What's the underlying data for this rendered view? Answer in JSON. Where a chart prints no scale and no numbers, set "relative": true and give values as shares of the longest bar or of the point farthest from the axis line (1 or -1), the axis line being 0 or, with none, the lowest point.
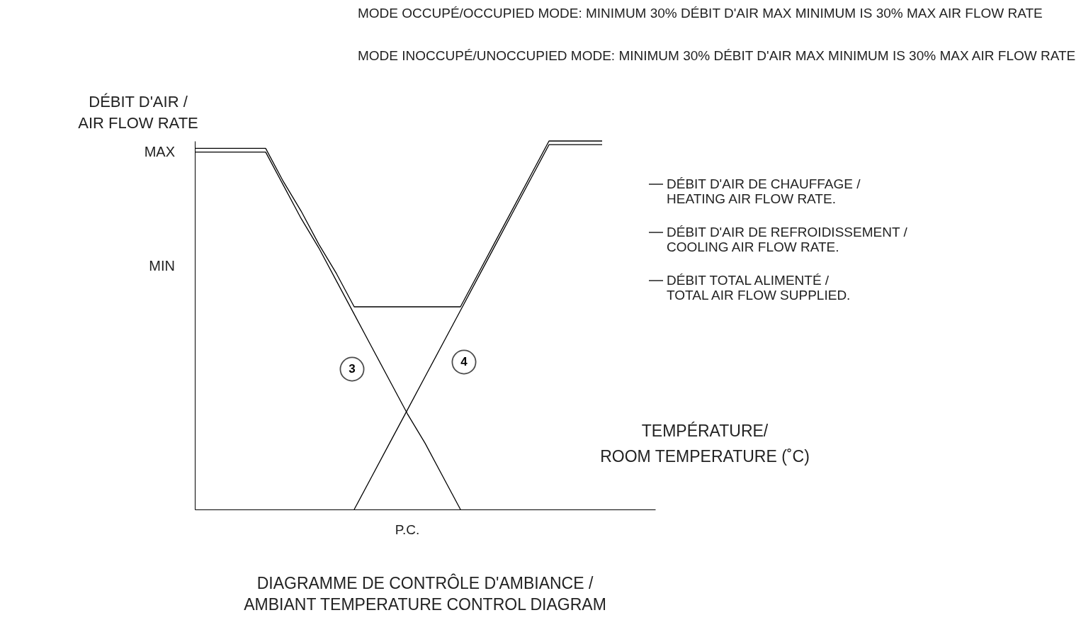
{
  "chart_data": {
    "type": "line",
    "relative": true,
    "title": "DIAGRAMME DE CONTRÔLE D'AMBIANCE / AMBIANT TEMPERATURE CONTROL DIAGRAM",
    "xlabel": "TEMPÉRATURE/ ROOM TEMPERATURE (˚C)",
    "ylabel": "DÉBIT D'AIR / AIR FLOW RATE",
    "categories": [
      null,
      null,
      null,
      null,
      null,
      null,
      null,
      null,
      null,
      null,
      null,
      null,
      null,
      null,
      null,
      null,
      null,
      null,
      null,
      null,
      null,
      null,
      null,
      null,
      null,
      null,
      null
    ],
    "series": [
      {
        "name": "DÉBIT D'AIR DE CHAUFFAGE / HEATING AIR FLOW RATE.",
        "color": "#000000",
        "values": [
          0.97,
          0.97,
          0.97,
          0.97,
          0.97,
          0.88,
          0.79,
          0.71,
          0.62,
          0.53,
          0.44,
          0.35,
          0.26,
          0.18,
          0.09,
          0,
          null,
          null,
          null,
          null,
          null,
          null,
          null,
          null,
          null,
          null,
          null
        ]
      },
      {
        "name": "DÉBIT D'AIR DE REFROIDISSEMENT / COOLING AIR FLOW RATE.",
        "color": "#000000",
        "values": [
          null,
          null,
          null,
          null,
          null,
          null,
          null,
          null,
          null,
          0,
          0.09,
          0.18,
          0.27,
          0.36,
          0.45,
          0.54,
          0.63,
          0.72,
          0.81,
          0.9,
          0.99,
          0.99,
          0.99,
          0.99,
          null,
          null,
          null
        ]
      },
      {
        "name": "DÉBIT TOTAL ALIMENTÉ / TOTAL AIR FLOW SUPPLIED.",
        "color": "#000000",
        "values": [
          0.98,
          0.98,
          0.98,
          0.98,
          0.98,
          0.89,
          0.81,
          0.72,
          0.64,
          0.55,
          0.55,
          0.55,
          0.55,
          0.55,
          0.55,
          0.55,
          0.64,
          0.73,
          0.82,
          0.91,
          1,
          1,
          1,
          1,
          null,
          null,
          null
        ]
      }
    ],
    "annotations": [
      "MODE OCCUPÉ/OCCUPIED MODE: MINIMUM 30% DÉBIT D'AIR MAX MINIMUM IS 30% MAX AIR FLOW RATE",
      "MODE INOCCUPÉ/UNOCCUPIED MODE: MINIMUM 30% DÉBIT D'AIR MAX MINIMUM IS 30% MAX AIR FLOW RATE",
      "P.C.",
      "3",
      "4",
      "MAX",
      "MIN"
    ],
    "legend": "right",
    "marker": "none",
    "line_style": "solid"
  }
}
